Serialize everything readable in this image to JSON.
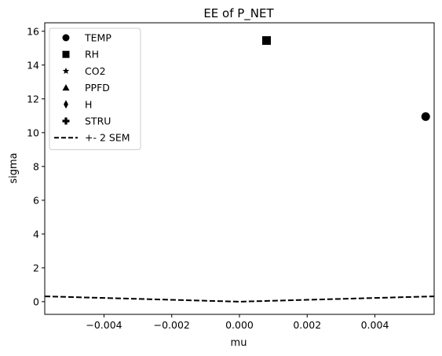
{
  "chart_data": {
    "type": "scatter",
    "title": "EE of P_NET",
    "xlabel": "mu",
    "ylabel": "sigma",
    "xlim": [
      -0.00575,
      0.00575
    ],
    "ylim": [
      -0.75,
      16.5
    ],
    "xticks": [
      -0.004,
      -0.002,
      0.0,
      0.002,
      0.004
    ],
    "xtick_labels": [
      "−0.004",
      "−0.002",
      "0.000",
      "0.002",
      "0.004"
    ],
    "yticks": [
      0,
      2,
      4,
      6,
      8,
      10,
      12,
      14,
      16
    ],
    "ytick_labels": [
      "0",
      "2",
      "4",
      "6",
      "8",
      "10",
      "12",
      "14",
      "16"
    ],
    "grid": false,
    "legend_position": "top-left",
    "series": [
      {
        "name": "TEMP",
        "marker": "circle",
        "points": [
          [
            0.0055,
            10.95
          ]
        ]
      },
      {
        "name": "RH",
        "marker": "square",
        "points": [
          [
            0.0008,
            15.45
          ]
        ]
      },
      {
        "name": "CO2",
        "marker": "star",
        "points": []
      },
      {
        "name": "PPFD",
        "marker": "triangle",
        "points": []
      },
      {
        "name": "H",
        "marker": "diamond",
        "points": []
      },
      {
        "name": "STRU",
        "marker": "plus",
        "points": []
      }
    ],
    "sem_line": {
      "name": "+- 2 SEM",
      "style": "dashed",
      "slope": 55
    },
    "color": "#000000"
  }
}
